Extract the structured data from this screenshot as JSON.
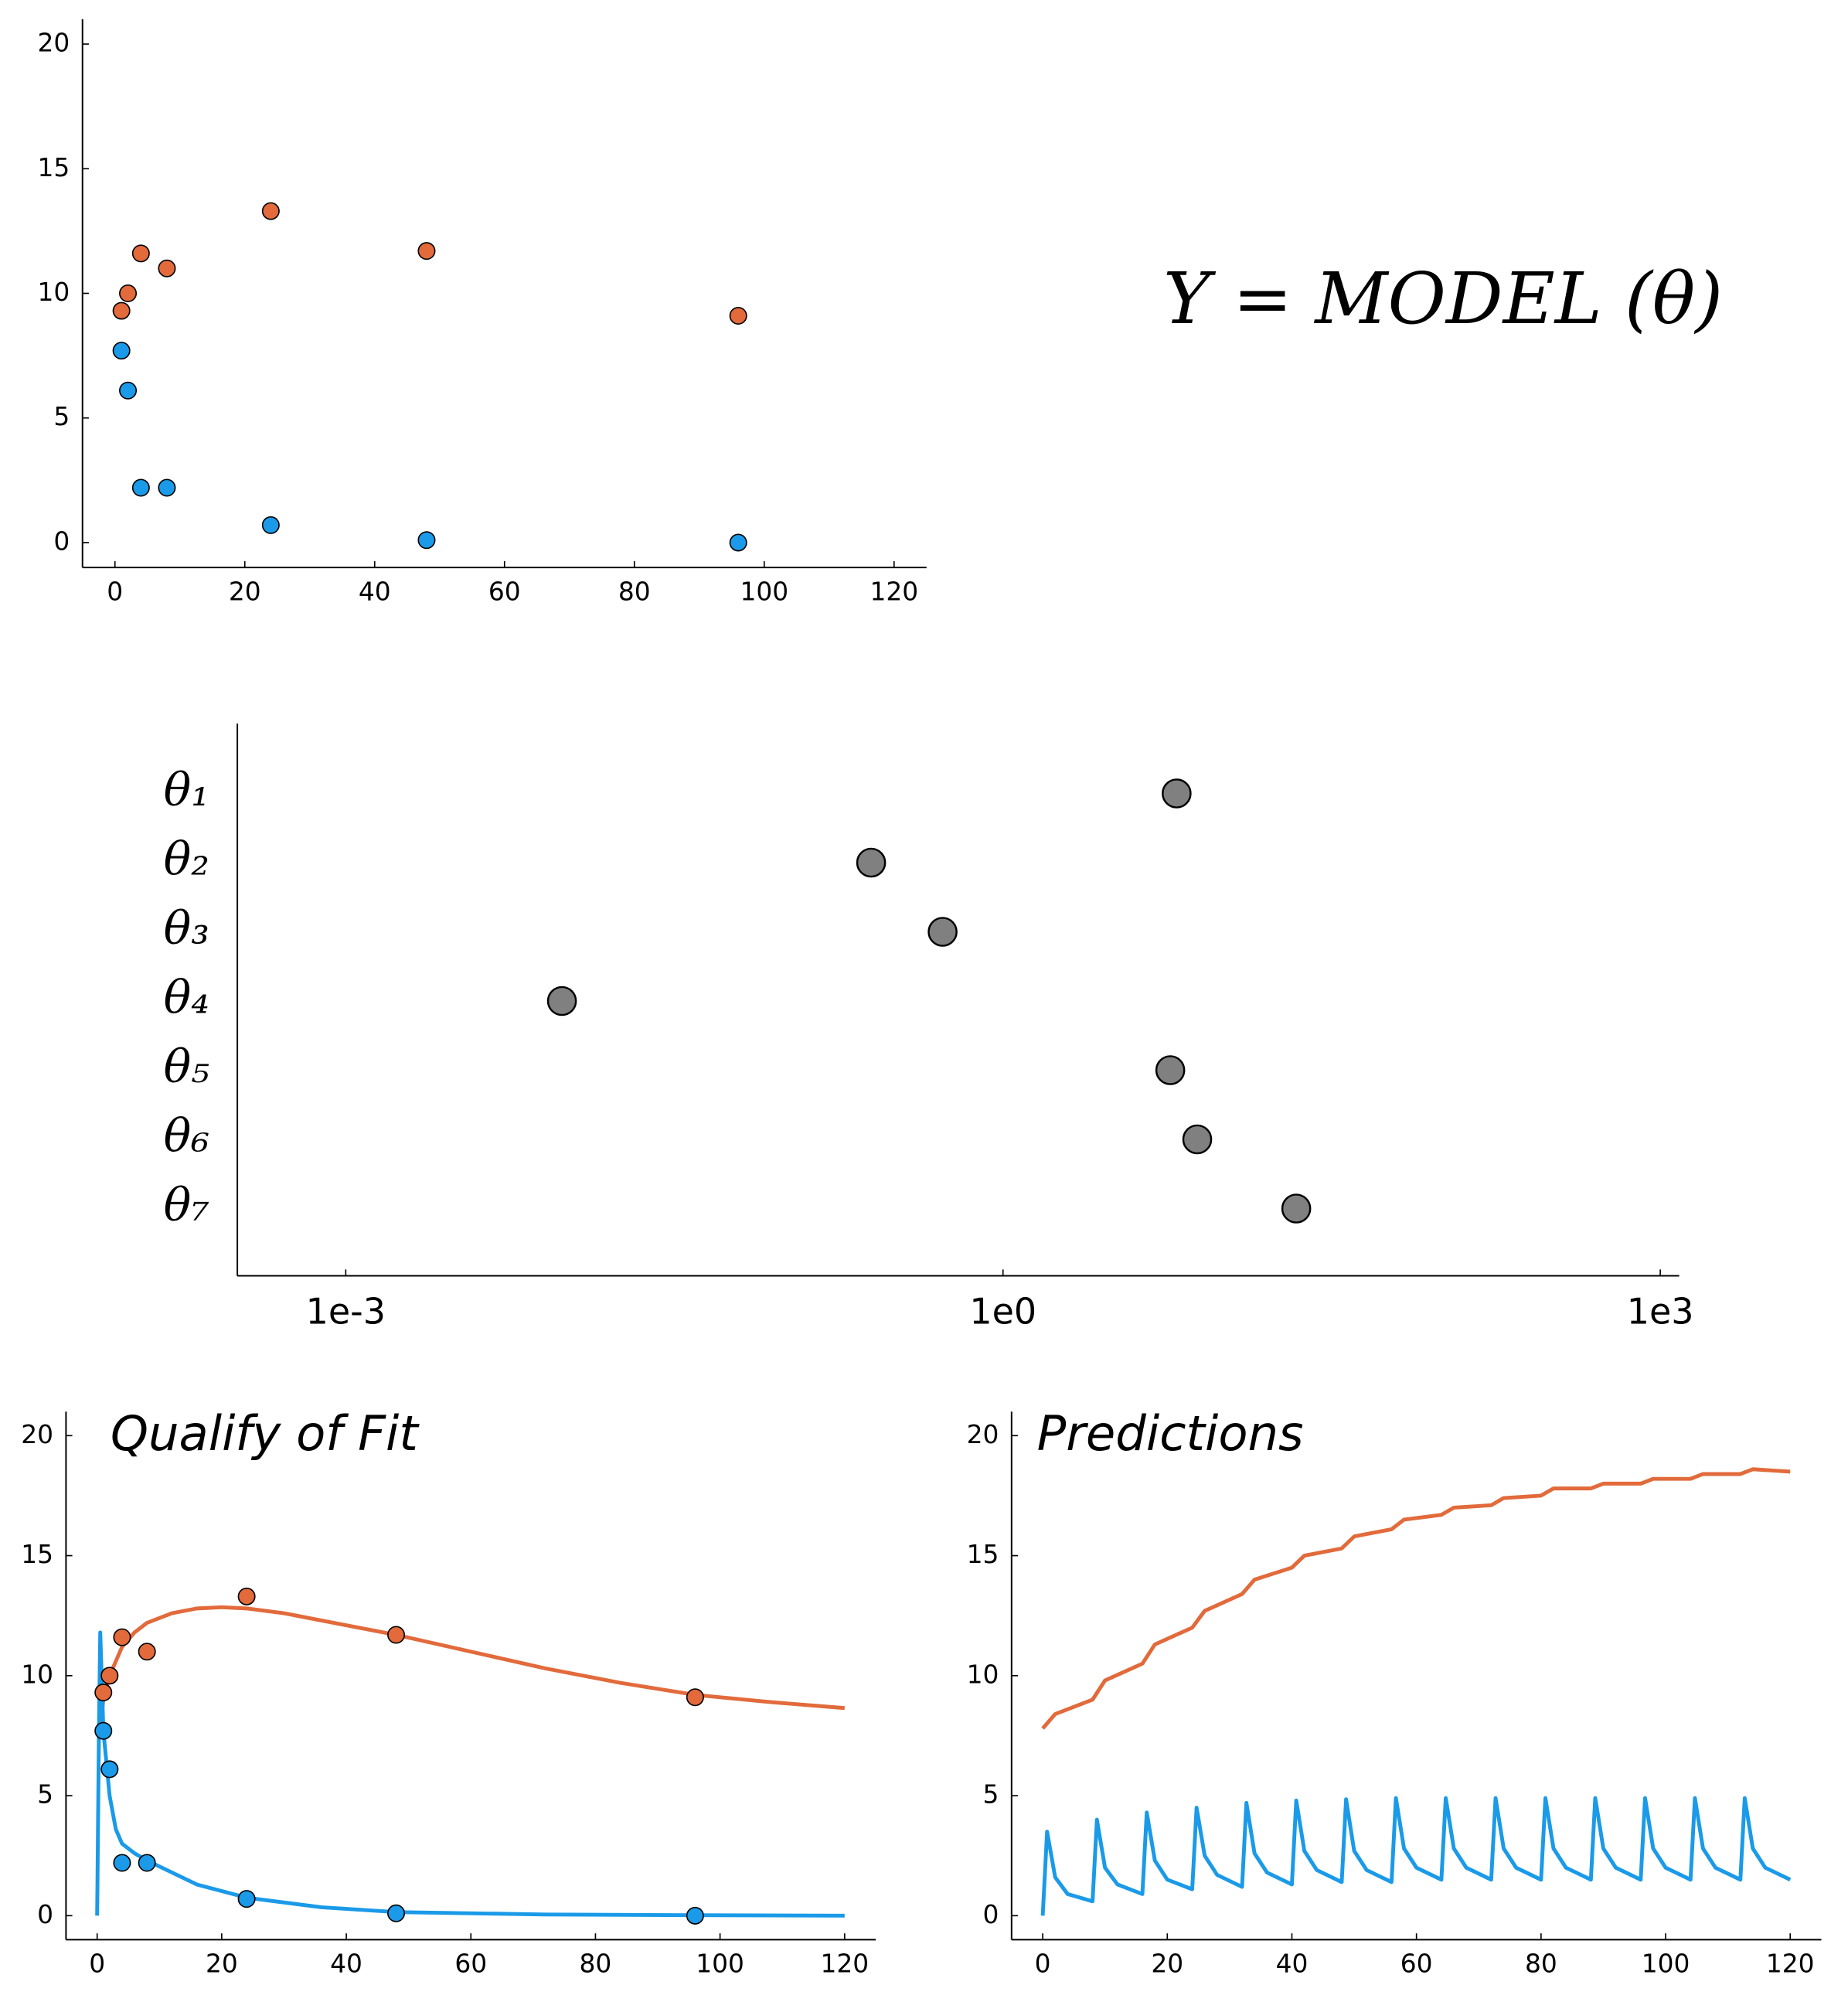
{
  "chart_data": [
    {
      "type": "scatter",
      "annotation": "Y = MODEL (θ)",
      "xlim": [
        -5,
        125
      ],
      "ylim": [
        -1,
        21
      ],
      "xticks": [
        0,
        20,
        40,
        60,
        80,
        100,
        120
      ],
      "yticks": [
        0,
        5,
        10,
        15,
        20
      ],
      "series": [
        {
          "color": "#e26a3b",
          "style": "markers",
          "x": [
            1,
            2,
            4,
            8,
            24,
            48,
            96
          ],
          "values": [
            9.3,
            10,
            11.6,
            11,
            13.3,
            11.7,
            9.1
          ]
        },
        {
          "color": "#1a9ae8",
          "style": "markers",
          "x": [
            1,
            2,
            4,
            8,
            24,
            48,
            96
          ],
          "values": [
            7.7,
            6.1,
            2.2,
            2.2,
            0.7,
            0.1,
            0.0
          ]
        }
      ]
    },
    {
      "type": "dot",
      "xscale": "log",
      "categories": [
        "θ₁",
        "θ₂",
        "θ₃",
        "θ₄",
        "θ₅",
        "θ₆",
        "θ₇"
      ],
      "values": [
        6.2,
        0.25,
        0.53,
        0.0097,
        5.8,
        7.7,
        21.8
      ],
      "color": "#808080",
      "xlim": [
        0.00032,
        1220
      ],
      "xticks": [
        {
          "value": 0.001,
          "label": "1e-3"
        },
        {
          "value": 1,
          "label": "1e0"
        },
        {
          "value": 1000,
          "label": "1e3"
        }
      ]
    },
    {
      "type": "scatter",
      "title": "Qualify of Fit",
      "xlim": [
        -5,
        125
      ],
      "ylim": [
        -1,
        21
      ],
      "xticks": [
        0,
        20,
        40,
        60,
        80,
        100,
        120
      ],
      "yticks": [
        0,
        5,
        10,
        15,
        20
      ],
      "series": [
        {
          "color": "#e26a3b",
          "style": "line",
          "x": [
            0.5,
            1,
            2,
            4,
            6,
            8,
            12,
            16,
            20,
            24,
            30,
            36,
            48,
            60,
            72,
            84,
            96,
            108,
            120
          ],
          "values": [
            7.8,
            9.0,
            10.0,
            11.2,
            11.8,
            12.2,
            12.6,
            12.8,
            12.85,
            12.8,
            12.6,
            12.3,
            11.7,
            11.0,
            10.3,
            9.7,
            9.2,
            8.9,
            8.65
          ]
        },
        {
          "color": "#1a9ae8",
          "style": "line",
          "x": [
            0,
            0.3,
            0.5,
            1,
            2,
            3,
            4,
            6,
            8,
            12,
            16,
            24,
            36,
            48,
            72,
            96,
            120
          ],
          "values": [
            0,
            8,
            11.8,
            7.7,
            5.0,
            3.6,
            3.0,
            2.6,
            2.3,
            1.8,
            1.3,
            0.75,
            0.35,
            0.15,
            0.05,
            0.02,
            0.0
          ]
        },
        {
          "color": "#e26a3b",
          "style": "markers",
          "x": [
            1,
            2,
            4,
            8,
            24,
            48,
            96
          ],
          "values": [
            9.3,
            10,
            11.6,
            11,
            13.3,
            11.7,
            9.1
          ]
        },
        {
          "color": "#1a9ae8",
          "style": "markers",
          "x": [
            1,
            2,
            4,
            8,
            24,
            48,
            96
          ],
          "values": [
            7.7,
            6.1,
            2.2,
            2.2,
            0.7,
            0.1,
            0.0
          ]
        }
      ]
    },
    {
      "type": "scatter",
      "title": "Predictions",
      "xlim": [
        -5,
        125
      ],
      "ylim": [
        -1,
        21
      ],
      "xticks": [
        0,
        20,
        40,
        60,
        80,
        100,
        120
      ],
      "yticks": [
        0,
        5,
        10,
        15,
        20
      ],
      "series": [
        {
          "color": "#e26a3b",
          "style": "line",
          "x": [
            0,
            2,
            8,
            10,
            16,
            18,
            24,
            26,
            32,
            34,
            40,
            42,
            48,
            50,
            56,
            58,
            64,
            66,
            72,
            74,
            80,
            82,
            88,
            90,
            96,
            98,
            104,
            106,
            112,
            114,
            120
          ],
          "values": [
            7.8,
            8.4,
            9.0,
            9.8,
            10.5,
            11.3,
            12.0,
            12.7,
            13.4,
            14.0,
            14.5,
            15.0,
            15.3,
            15.8,
            16.1,
            16.5,
            16.7,
            17.0,
            17.1,
            17.4,
            17.5,
            17.8,
            17.8,
            18.0,
            18.0,
            18.2,
            18.2,
            18.4,
            18.4,
            18.6,
            18.5
          ]
        },
        {
          "color": "#1a9ae8",
          "style": "line",
          "x": [
            0,
            0.7,
            2,
            4,
            8,
            8.7,
            10,
            12,
            16,
            16.7,
            18,
            20,
            24,
            24.7,
            26,
            28,
            32,
            32.7,
            34,
            36,
            40,
            40.7,
            42,
            44,
            48,
            48.7,
            50,
            52,
            56,
            56.7,
            58,
            60,
            64,
            64.7,
            66,
            68,
            72,
            72.7,
            74,
            76,
            80,
            80.7,
            82,
            84,
            88,
            88.7,
            90,
            92,
            96,
            96.7,
            98,
            100,
            104,
            104.7,
            106,
            108,
            112,
            112.7,
            114,
            116,
            120
          ],
          "values": [
            0,
            3.5,
            1.6,
            0.9,
            0.6,
            4.0,
            2.0,
            1.3,
            0.9,
            4.3,
            2.3,
            1.5,
            1.1,
            4.5,
            2.5,
            1.7,
            1.2,
            4.7,
            2.6,
            1.8,
            1.3,
            4.8,
            2.7,
            1.9,
            1.4,
            4.85,
            2.7,
            1.9,
            1.4,
            4.9,
            2.8,
            2.0,
            1.5,
            4.9,
            2.8,
            2.0,
            1.5,
            4.9,
            2.8,
            2.0,
            1.5,
            4.9,
            2.8,
            2.0,
            1.5,
            4.9,
            2.8,
            2.0,
            1.5,
            4.9,
            2.8,
            2.0,
            1.5,
            4.9,
            2.8,
            2.0,
            1.5,
            4.9,
            2.8,
            2.0,
            1.5
          ]
        }
      ]
    }
  ]
}
